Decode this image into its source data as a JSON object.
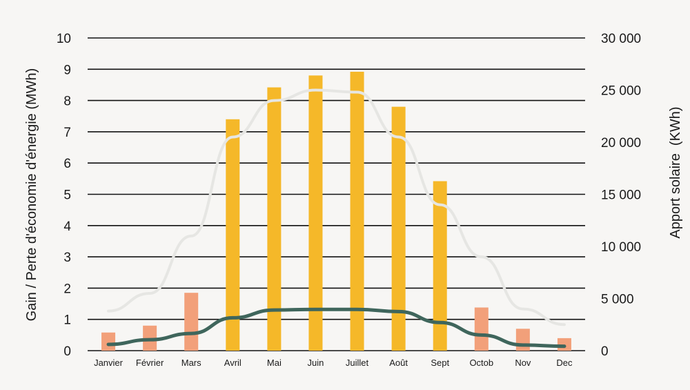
{
  "chart_data": {
    "type": "bar",
    "categories": [
      "Janvier",
      "Février",
      "Mars",
      "Avril",
      "Mai",
      "Juin",
      "Juillet",
      "Août",
      "Sept",
      "Octob",
      "Nov",
      "Dec"
    ],
    "ylabel": "Gain / Perte d'économie d'énergie (MWh)",
    "y2label": "Apport solaire  (KWh)",
    "ylim": [
      0,
      10
    ],
    "y2lim": [
      0,
      30000
    ],
    "yticks": [
      "0",
      "1",
      "2",
      "3",
      "4",
      "5",
      "6",
      "7",
      "8",
      "9",
      "10"
    ],
    "y2ticks": [
      "0",
      "5 000",
      "10 000",
      "15 000",
      "20 000",
      "25 000",
      "30 000"
    ],
    "grid": true,
    "series": [
      {
        "kind": "bar",
        "axis": "left",
        "values": [
          0.58,
          0.8,
          1.85,
          7.4,
          8.42,
          8.8,
          8.92,
          7.8,
          5.42,
          1.38,
          0.7,
          0.4
        ],
        "colors": [
          "#f2a07a",
          "#f2a07a",
          "#f2a07a",
          "#f5b829",
          "#f5b829",
          "#f5b829",
          "#f5b829",
          "#f5b829",
          "#f5b829",
          "#f2a07a",
          "#f2a07a",
          "#f2a07a"
        ]
      },
      {
        "kind": "line",
        "axis": "left",
        "values": [
          0.2,
          0.35,
          0.55,
          1.05,
          1.3,
          1.32,
          1.32,
          1.25,
          0.9,
          0.5,
          0.18,
          0.14
        ],
        "color": "#3f665c"
      },
      {
        "kind": "line",
        "axis": "right",
        "values": [
          3800,
          5500,
          11000,
          20500,
          24000,
          25000,
          24800,
          20500,
          14000,
          9000,
          4000,
          2500
        ],
        "color": "#e6e6e3"
      }
    ]
  }
}
